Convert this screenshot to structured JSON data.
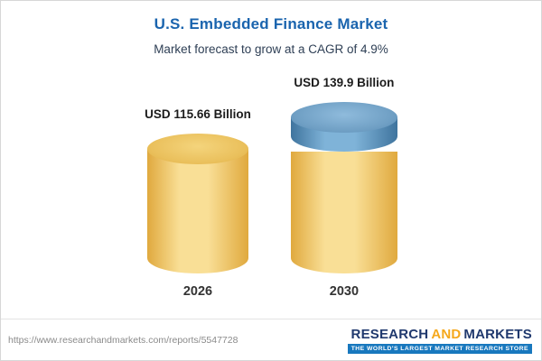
{
  "chart_data": {
    "type": "bar",
    "title": "U.S. Embedded Finance Market",
    "subtitle": "Market forecast to grow at a CAGR of 4.9%",
    "categories": [
      "2026",
      "2030"
    ],
    "values": [
      115.66,
      139.9
    ],
    "value_labels": [
      "USD 115.66 Billion",
      "USD 139.9 Billion"
    ],
    "unit": "USD Billion",
    "cagr_percent": 4.9,
    "bar_style": "3d-cylinder",
    "legend": "none",
    "grid": "off",
    "colors": {
      "cylinder_center": "#F9DF96",
      "cylinder_edge": "#E0A93E",
      "growth_segment_center": "#7FB3D8",
      "growth_segment_edge": "#3F749E",
      "title_blue": "#1A64AE"
    }
  },
  "footer": {
    "url": "https://www.researchandmarkets.com/reports/5547728",
    "logo": {
      "research": "RESEARCH",
      "and": "AND",
      "markets": "MARKETS",
      "tagline": "THE WORLD'S LARGEST MARKET RESEARCH STORE"
    }
  }
}
